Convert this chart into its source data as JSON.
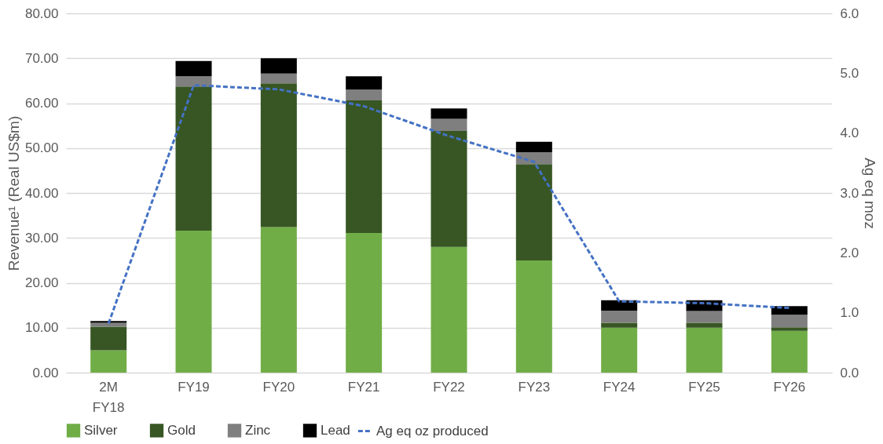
{
  "chart_data": {
    "type": "bar",
    "stacked": true,
    "ylabel": "Revenue¹ (Real US$m)",
    "y2label": "Ag eq moz",
    "categories": [
      "2M FY18",
      "FY19",
      "FY20",
      "FY21",
      "FY22",
      "FY23",
      "FY24",
      "FY25",
      "FY26"
    ],
    "series": [
      {
        "name": "Silver",
        "color": "#70ad47",
        "values": [
          5.0,
          31.6,
          32.4,
          31.1,
          28.0,
          25.0,
          10.0,
          10.0,
          9.3
        ]
      },
      {
        "name": "Gold",
        "color": "#375623",
        "values": [
          5.2,
          32.1,
          32.0,
          29.5,
          25.8,
          21.4,
          1.1,
          1.1,
          0.8
        ]
      },
      {
        "name": "Zinc",
        "color": "#7f7f7f",
        "values": [
          0.9,
          2.3,
          2.2,
          2.4,
          2.7,
          2.7,
          2.7,
          2.6,
          2.8
        ]
      },
      {
        "name": "Lead",
        "color": "#000000",
        "values": [
          0.4,
          3.4,
          3.4,
          3.0,
          2.3,
          2.3,
          2.3,
          2.4,
          1.9
        ]
      },
      {
        "name": "Ag eq oz produced",
        "type": "line",
        "axis": "y2",
        "line_style": "dashed",
        "color": "#4472c4",
        "values": [
          0.82,
          4.8,
          4.73,
          4.45,
          3.95,
          3.52,
          1.19,
          1.16,
          1.08
        ]
      }
    ],
    "ylim": [
      0,
      80
    ],
    "yticks": [
      {
        "value": 0,
        "label": "0.00"
      },
      {
        "value": 10,
        "label": "10.00"
      },
      {
        "value": 20,
        "label": "20.00"
      },
      {
        "value": 30,
        "label": "30.00"
      },
      {
        "value": 40,
        "label": "40.00"
      },
      {
        "value": 50,
        "label": "50.00"
      },
      {
        "value": 60,
        "label": "60.00"
      },
      {
        "value": 70,
        "label": "70.00"
      },
      {
        "value": 80,
        "label": "80.00"
      }
    ],
    "y2lim": [
      0,
      6
    ],
    "y2ticks": [
      {
        "value": 0,
        "label": "0.0"
      },
      {
        "value": 1,
        "label": "1.0"
      },
      {
        "value": 2,
        "label": "2.0"
      },
      {
        "value": 3,
        "label": "3.0"
      },
      {
        "value": 4,
        "label": "4.0"
      },
      {
        "value": 5,
        "label": "5.0"
      },
      {
        "value": 6,
        "label": "6.0"
      }
    ],
    "grid": "y",
    "legend": "bottom"
  }
}
